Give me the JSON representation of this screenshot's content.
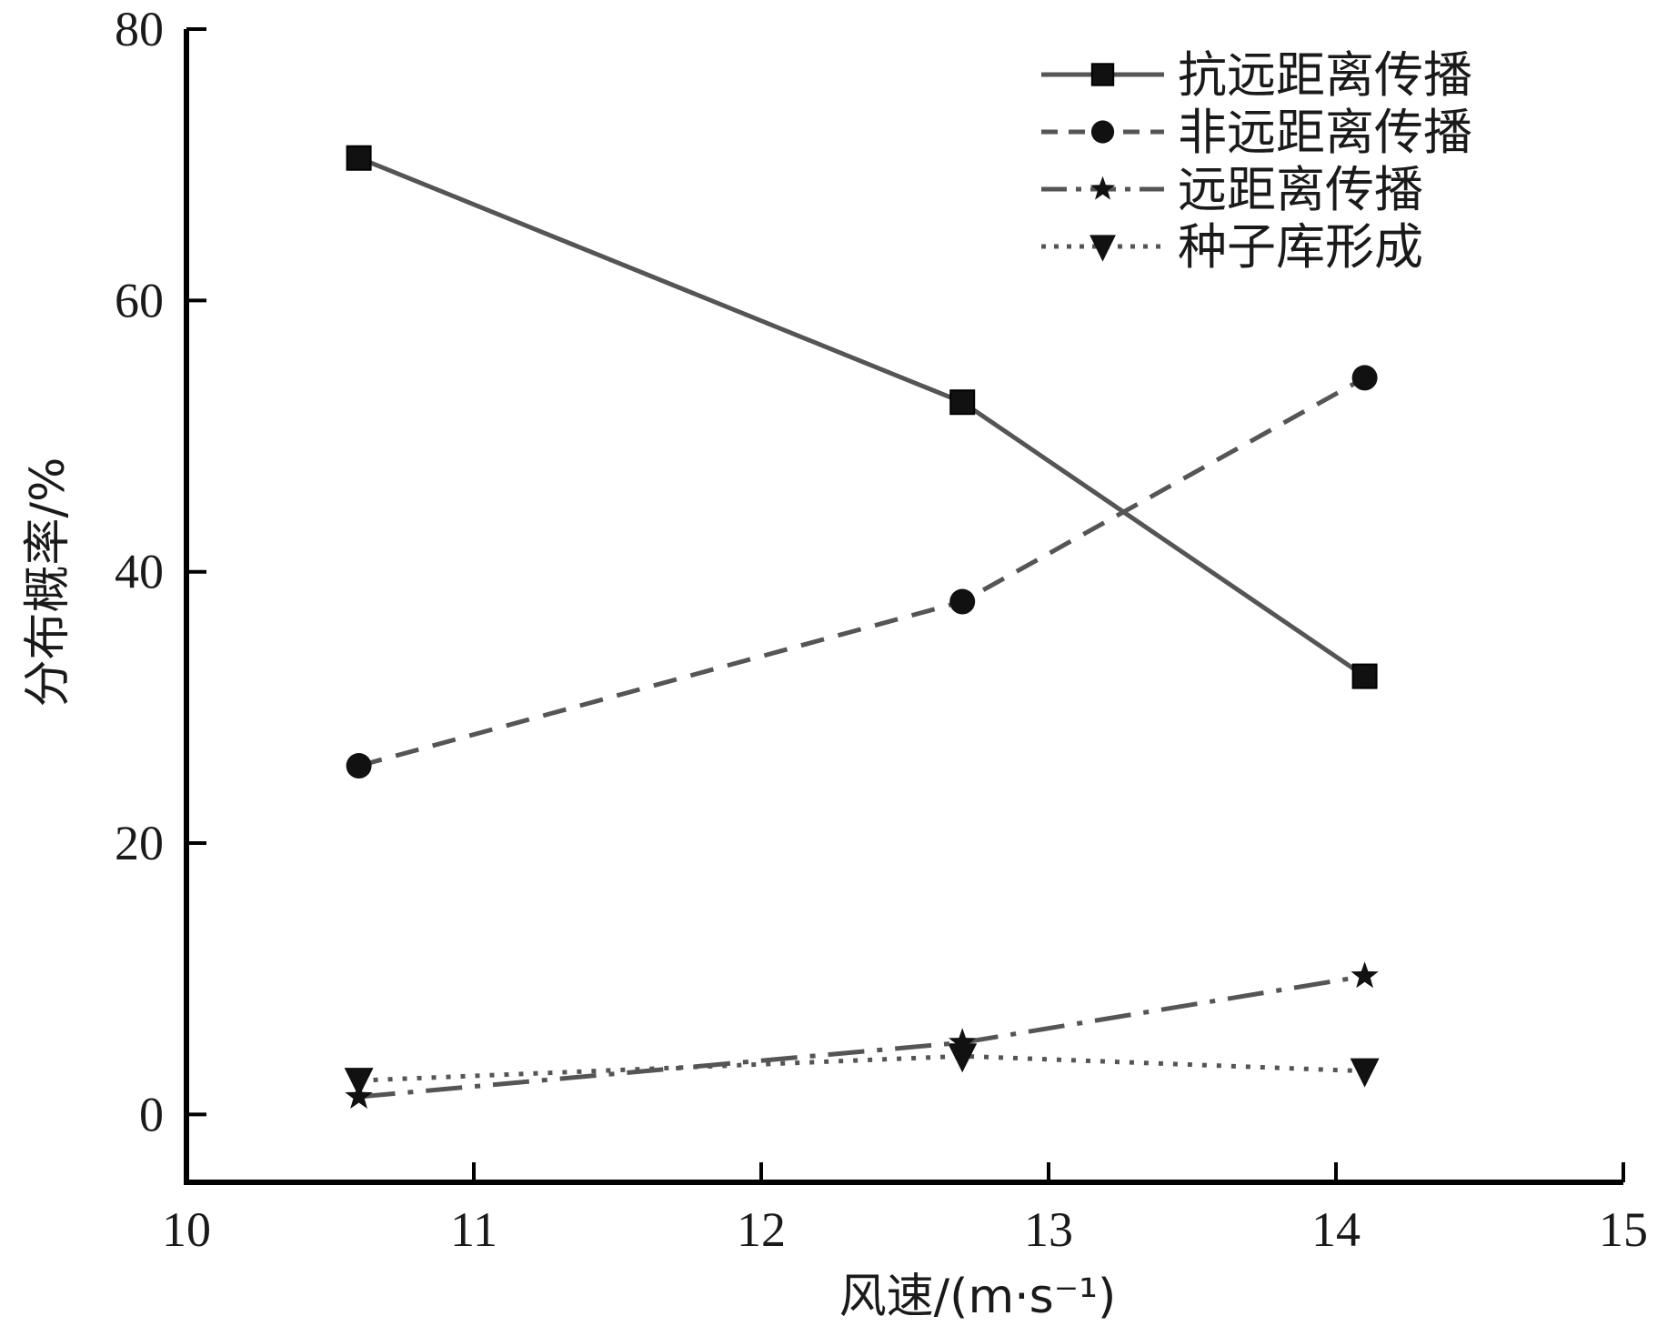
{
  "chart_data": {
    "type": "line",
    "xlabel": "风速/(m·s⁻¹)",
    "ylabel": "分布概率/%",
    "xlim": [
      10,
      15
    ],
    "ylim": [
      -5,
      80
    ],
    "xticks": [
      10,
      11,
      12,
      13,
      14,
      15
    ],
    "yticks": [
      0,
      20,
      40,
      60,
      80
    ],
    "grid": false,
    "legend_position": "top-right",
    "x": [
      10.6,
      12.7,
      14.1
    ],
    "series": [
      {
        "name": "抗远距离传播",
        "values": [
          70.5,
          52.5,
          32.3
        ],
        "marker": "square",
        "line_style": "solid",
        "color": "#555555"
      },
      {
        "name": "非远距离传播",
        "values": [
          25.7,
          37.8,
          54.3
        ],
        "marker": "circle",
        "line_style": "dashed",
        "color": "#555555"
      },
      {
        "name": "远距离传播",
        "values": [
          1.3,
          5.3,
          10.2
        ],
        "marker": "star",
        "line_style": "dash-dot",
        "color": "#555555"
      },
      {
        "name": "种子库形成",
        "values": [
          2.5,
          4.3,
          3.2
        ],
        "marker": "triangle-down",
        "line_style": "dotted",
        "color": "#555555"
      }
    ]
  }
}
